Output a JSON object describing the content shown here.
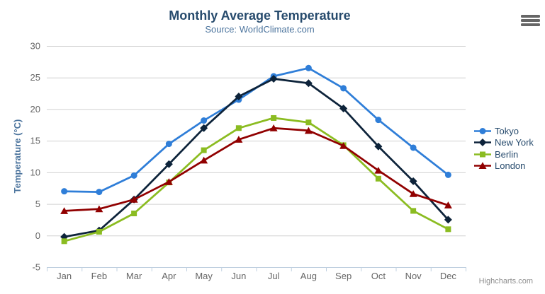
{
  "chart_data": {
    "type": "line",
    "title": "Monthly Average Temperature",
    "subtitle": "Source: WorldClimate.com",
    "categories": [
      "Jan",
      "Feb",
      "Mar",
      "Apr",
      "May",
      "Jun",
      "Jul",
      "Aug",
      "Sep",
      "Oct",
      "Nov",
      "Dec"
    ],
    "xlabel": "",
    "ylabel": "Temperature (°C)",
    "ylim": [
      -5,
      30
    ],
    "ytick_interval": 5,
    "grid": true,
    "legend_position": "right",
    "series": [
      {
        "name": "Tokyo",
        "color": "#2f7ed8",
        "marker": "circle",
        "values": [
          7.0,
          6.9,
          9.5,
          14.5,
          18.2,
          21.5,
          25.2,
          26.5,
          23.3,
          18.3,
          13.9,
          9.6
        ]
      },
      {
        "name": "New York",
        "color": "#0d233a",
        "marker": "diamond",
        "values": [
          -0.2,
          0.8,
          5.7,
          11.3,
          17.0,
          22.0,
          24.8,
          24.1,
          20.1,
          14.1,
          8.6,
          2.5
        ]
      },
      {
        "name": "Berlin",
        "color": "#8bbc21",
        "marker": "square",
        "values": [
          -0.9,
          0.6,
          3.5,
          8.4,
          13.5,
          17.0,
          18.6,
          17.9,
          14.3,
          9.0,
          3.9,
          1.0
        ]
      },
      {
        "name": "London",
        "color": "#910000",
        "marker": "triangle",
        "values": [
          3.9,
          4.2,
          5.7,
          8.5,
          11.9,
          15.2,
          17.0,
          16.6,
          14.2,
          10.3,
          6.6,
          4.8
        ]
      }
    ]
  },
  "credits": {
    "label": "Highcharts.com"
  },
  "menu": {
    "icon": "hamburger-icon"
  },
  "colors": {
    "title": "#274b6d",
    "subtitle": "#4d759e",
    "axis_title": "#4d759e",
    "axis_label": "#666666",
    "legend_text": "#274b6d",
    "grid": "#d0d0d0",
    "axis_line": "#c0d0e0",
    "credits": "#909090",
    "menu_icon": "#666666",
    "background": "#ffffff"
  }
}
